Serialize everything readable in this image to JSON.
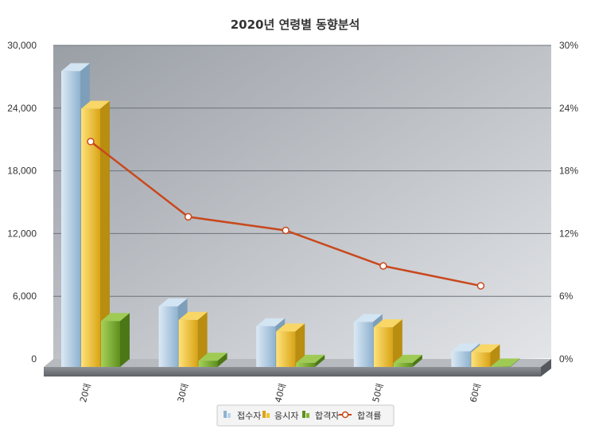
{
  "chart_data": {
    "type": "bar",
    "title": "2020년 연령별 동향분석",
    "categories": [
      "20대",
      "30대",
      "40대",
      "50대",
      "60대"
    ],
    "series": [
      {
        "name": "접수자",
        "values": [
          28300,
          5800,
          3900,
          4300,
          1500
        ],
        "color": "#b8d4ea",
        "axis": "left"
      },
      {
        "name": "응시자",
        "values": [
          24700,
          4500,
          3400,
          3800,
          1400
        ],
        "color": "#f2c431",
        "axis": "left"
      },
      {
        "name": "합격자",
        "values": [
          4400,
          600,
          400,
          400,
          50
        ],
        "color": "#86b636",
        "axis": "left"
      }
    ],
    "line_series": {
      "name": "합격률",
      "values": [
        20.8,
        13.6,
        12.3,
        8.9,
        7.0
      ],
      "color": "#c9481d",
      "axis": "right"
    },
    "y_left": {
      "min": 0,
      "max": 30000,
      "ticks": [
        "0",
        "6,000",
        "12,000",
        "18,000",
        "24,000",
        "30,000"
      ]
    },
    "y_right": {
      "min": 0,
      "max": 30,
      "ticks": [
        "0%",
        "6%",
        "12%",
        "18%",
        "24%",
        "30%"
      ]
    },
    "grid": true,
    "legend_position": "bottom"
  }
}
